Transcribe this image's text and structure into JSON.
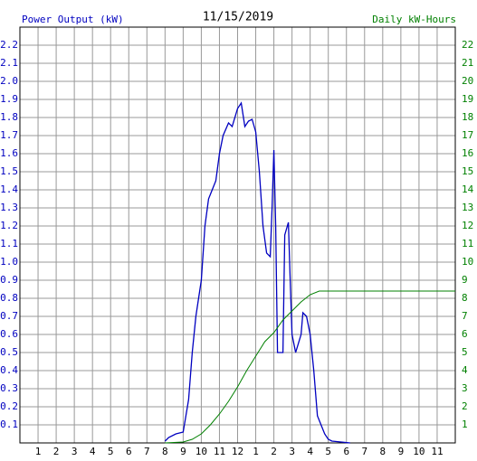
{
  "chart_data": {
    "type": "line",
    "title": "11/15/2019",
    "y_label": "Power Output (kW)",
    "y2_label": "Daily kW-Hours",
    "y_label_color": "#0000c0",
    "y2_label_color": "#008000",
    "xlim": [
      0,
      24
    ],
    "xticks": [
      {
        "value": 1,
        "label": "1"
      },
      {
        "value": 2,
        "label": "2"
      },
      {
        "value": 3,
        "label": "3"
      },
      {
        "value": 4,
        "label": "4"
      },
      {
        "value": 5,
        "label": "5"
      },
      {
        "value": 6,
        "label": "6"
      },
      {
        "value": 7,
        "label": "7"
      },
      {
        "value": 8,
        "label": "8"
      },
      {
        "value": 9,
        "label": "9"
      },
      {
        "value": 10,
        "label": "10"
      },
      {
        "value": 11,
        "label": "11"
      },
      {
        "value": 12,
        "label": "12"
      },
      {
        "value": 13,
        "label": "1"
      },
      {
        "value": 14,
        "label": "2"
      },
      {
        "value": 15,
        "label": "3"
      },
      {
        "value": 16,
        "label": "4"
      },
      {
        "value": 17,
        "label": "5"
      },
      {
        "value": 18,
        "label": "6"
      },
      {
        "value": 19,
        "label": "7"
      },
      {
        "value": 20,
        "label": "8"
      },
      {
        "value": 21,
        "label": "9"
      },
      {
        "value": 22,
        "label": "10"
      },
      {
        "value": 23,
        "label": "11"
      }
    ],
    "ylim": [
      0,
      2.3
    ],
    "yticks": [
      0.1,
      0.2,
      0.3,
      0.4,
      0.5,
      0.6,
      0.7,
      0.8,
      0.9,
      {
        "value": 1,
        "label": "1.0"
      },
      1.1,
      1.2,
      1.3,
      1.4,
      1.5,
      1.6,
      1.7,
      1.8,
      1.9,
      {
        "value": 2,
        "label": "2.0"
      },
      2.1,
      2.2
    ],
    "y2lim": [
      0,
      23
    ],
    "y2ticks": [
      1,
      2,
      3,
      4,
      5,
      6,
      7,
      8,
      9,
      10,
      11,
      12,
      13,
      14,
      15,
      16,
      17,
      18,
      19,
      20,
      21,
      22
    ],
    "grid": true,
    "series": [
      {
        "name": "Power Output (kW)",
        "color": "#0000c0",
        "axis": "y",
        "x": [
          8.0,
          8.2,
          8.6,
          9.0,
          9.3,
          9.5,
          9.7,
          10.0,
          10.2,
          10.4,
          10.6,
          10.8,
          11.0,
          11.2,
          11.5,
          11.7,
          12.0,
          12.2,
          12.4,
          12.6,
          12.8,
          13.0,
          13.2,
          13.4,
          13.6,
          13.8,
          13.9,
          14.0,
          14.1,
          14.2,
          14.5,
          14.6,
          14.8,
          14.9,
          15.0,
          15.2,
          15.5,
          15.6,
          15.8,
          16.0,
          16.2,
          16.4,
          16.6,
          16.8,
          17.0,
          17.2,
          18.2
        ],
        "values": [
          0.01,
          0.03,
          0.05,
          0.06,
          0.24,
          0.5,
          0.7,
          0.9,
          1.2,
          1.35,
          1.4,
          1.45,
          1.6,
          1.7,
          1.77,
          1.75,
          1.85,
          1.88,
          1.75,
          1.78,
          1.79,
          1.72,
          1.5,
          1.2,
          1.05,
          1.03,
          1.3,
          1.62,
          1.2,
          0.5,
          0.5,
          1.15,
          1.22,
          0.9,
          0.6,
          0.5,
          0.6,
          0.72,
          0.7,
          0.6,
          0.4,
          0.15,
          0.1,
          0.05,
          0.02,
          0.01,
          0
        ]
      },
      {
        "name": "Daily kW-Hours",
        "color": "#008000",
        "axis": "y2",
        "x": [
          8.0,
          9.0,
          9.5,
          10.0,
          10.5,
          11.0,
          11.5,
          12.0,
          12.5,
          13.0,
          13.5,
          14.0,
          14.5,
          15.0,
          15.5,
          16.0,
          16.5,
          17.0,
          24.0
        ],
        "values": [
          0,
          0.05,
          0.2,
          0.5,
          1.0,
          1.6,
          2.3,
          3.1,
          4.0,
          4.8,
          5.6,
          6.1,
          6.8,
          7.3,
          7.8,
          8.2,
          8.4,
          8.4,
          8.4
        ]
      }
    ]
  }
}
